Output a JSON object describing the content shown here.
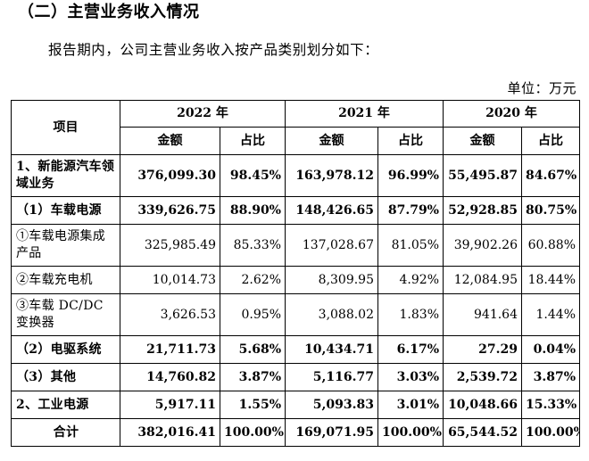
{
  "heading": "（二）主营业务收入情况",
  "intro": "报告期内，公司主营业务收入按产品类别划分如下：",
  "unit": "单位：万元",
  "table": {
    "item_header": "项目",
    "years": [
      "2022 年",
      "2021 年",
      "2020 年"
    ],
    "sub_headers": {
      "amount": "金额",
      "ratio": "占比"
    },
    "rows": [
      {
        "label": "1、新能源汽车领域业务",
        "values": [
          "376,099.30",
          "98.45%",
          "163,978.12",
          "96.99%",
          "55,495.87",
          "84.67%"
        ]
      },
      {
        "label": "（1）车载电源",
        "values": [
          "339,626.75",
          "88.90%",
          "148,426.65",
          "87.79%",
          "52,928.85",
          "80.75%"
        ]
      },
      {
        "label": "①车载电源集成产品",
        "values": [
          "325,985.49",
          "85.33%",
          "137,028.67",
          "81.05%",
          "39,902.26",
          "60.88%"
        ]
      },
      {
        "label": "②车载充电机",
        "values": [
          "10,014.73",
          "2.62%",
          "8,309.95",
          "4.92%",
          "12,084.95",
          "18.44%"
        ]
      },
      {
        "label": "③车载 DC/DC 变换器",
        "values": [
          "3,626.53",
          "0.95%",
          "3,088.02",
          "1.83%",
          "941.64",
          "1.44%"
        ]
      },
      {
        "label": "（2）电驱系统",
        "values": [
          "21,711.73",
          "5.68%",
          "10,434.71",
          "6.17%",
          "27.29",
          "0.04%"
        ]
      },
      {
        "label": "（3）其他",
        "values": [
          "14,760.82",
          "3.87%",
          "5,116.77",
          "3.03%",
          "2,539.72",
          "3.87%"
        ]
      },
      {
        "label": "2、工业电源",
        "values": [
          "5,917.11",
          "1.55%",
          "5,093.83",
          "3.01%",
          "10,048.66",
          "15.33%"
        ]
      },
      {
        "label": "合计",
        "values": [
          "382,016.41",
          "100.00%",
          "169,071.95",
          "100.00%",
          "65,544.52",
          "100.00%"
        ]
      }
    ]
  }
}
